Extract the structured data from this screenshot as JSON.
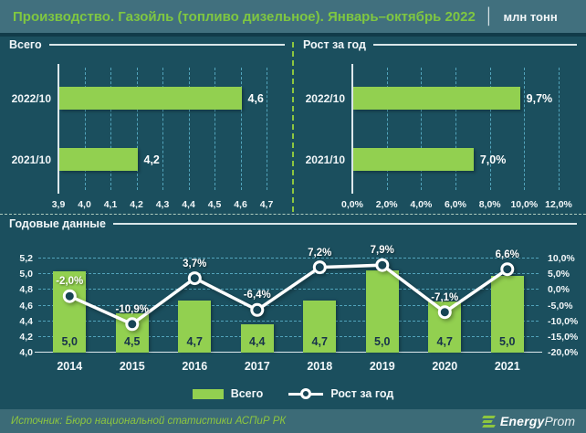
{
  "header": {
    "title": "Производство. Газойль (топливо дизельное). Январь–октябрь 2022",
    "separator": "│",
    "unit": "млн тонн"
  },
  "chart_data": [
    {
      "id": "total",
      "type": "bar",
      "orientation": "horizontal",
      "title": "Всего",
      "categories": [
        "2022/10",
        "2021/10"
      ],
      "values": [
        4.6,
        4.2
      ],
      "value_labels": [
        "4,6",
        "4,2"
      ],
      "axis_min": 3.9,
      "axis_max": 4.7,
      "ticks": [
        "3,9",
        "4,0",
        "4,1",
        "4,2",
        "4,3",
        "4,4",
        "4,5",
        "4,6",
        "4,7"
      ],
      "grid": "dashed-vertical"
    },
    {
      "id": "growth",
      "type": "bar",
      "orientation": "horizontal",
      "title": "Рост за год",
      "categories": [
        "2022/10",
        "2021/10"
      ],
      "values": [
        9.7,
        7.0
      ],
      "value_labels": [
        "9,7%",
        "7,0%"
      ],
      "axis_min": 0,
      "axis_max": 12,
      "ticks": [
        "0,0%",
        "2,0%",
        "4,0%",
        "6,0%",
        "8,0%",
        "10,0%",
        "12,0%"
      ],
      "grid": "dashed-vertical"
    },
    {
      "id": "annual",
      "type": "combo",
      "title": "Годовые данные",
      "categories": [
        "2014",
        "2015",
        "2016",
        "2017",
        "2018",
        "2019",
        "2020",
        "2021"
      ],
      "bar_series": {
        "name": "Всего",
        "values": [
          5.04,
          4.5,
          4.66,
          4.36,
          4.67,
          5.05,
          4.65,
          4.98
        ],
        "labels": [
          "5,0",
          "4,5",
          "4,7",
          "4,4",
          "4,7",
          "5,0",
          "4,7",
          "5,0"
        ]
      },
      "line_series": {
        "name": "Рост за год",
        "values": [
          -2.0,
          -10.9,
          3.7,
          -6.4,
          7.2,
          7.9,
          -7.1,
          6.6
        ],
        "labels": [
          "-2,0%",
          "-10,9%",
          "3,7%",
          "-6,4%",
          "7,2%",
          "7,9%",
          "-7,1%",
          "6,6%"
        ]
      },
      "left_axis": {
        "min": 4.0,
        "max": 5.2,
        "ticks_bottom_to_top": [
          "4,0",
          "4,2",
          "4,4",
          "4,6",
          "4,8",
          "5,0",
          "5,2"
        ]
      },
      "right_axis": {
        "min": -20,
        "max": 10,
        "ticks_bottom_to_top": [
          "-20,0%",
          "-15,0%",
          "-10,0%",
          "-5,0%",
          "0,0%",
          "5,0%",
          "10,0%"
        ]
      },
      "legend_position": "bottom"
    }
  ],
  "legend": {
    "bar_label": "Всего",
    "line_label": "Рост за год"
  },
  "footer": {
    "source": "Источник: Бюро национальной статистики АСПиР РК",
    "brand_bold": "Energy",
    "brand_light": "Prom"
  },
  "colors": {
    "background": "#1b4f5e",
    "header_bg": "#41707e",
    "footer_bg": "#3c6b77",
    "bar_green": "#92d050",
    "title_green": "#7fc741",
    "gridline_blue": "#60b9d2",
    "divider_green": "#8dc63f",
    "line_white": "#ffffff",
    "bar_label_dark": "#17324b"
  }
}
